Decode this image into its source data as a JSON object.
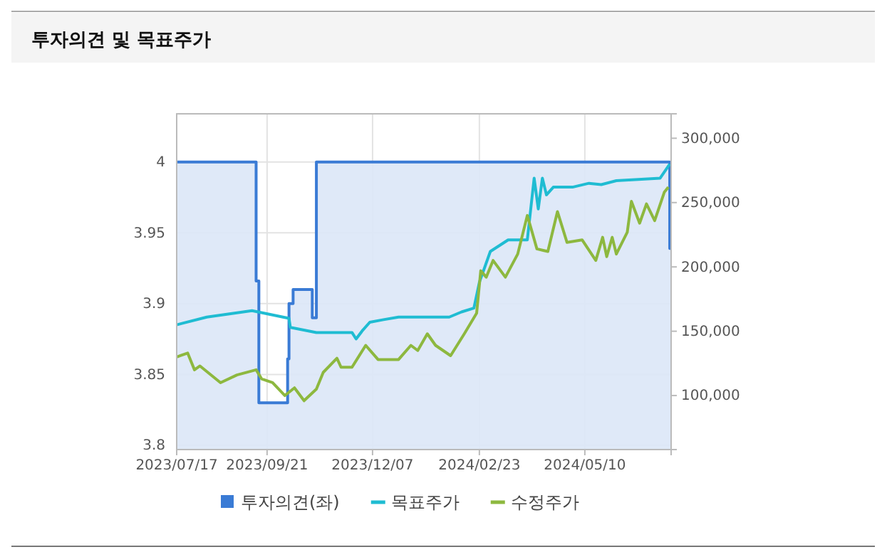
{
  "chart_data": {
    "type": "line",
    "title": "투자의견 및 목표주가",
    "xlim": [
      "2023-07-17",
      "2024-07-12"
    ],
    "xticks": [
      {
        "value": "2023-07-17",
        "label": "2023/07/17"
      },
      {
        "value": "2023-09-21",
        "label": "2023/09/21"
      },
      {
        "value": "2023-12-07",
        "label": "2023/12/07"
      },
      {
        "value": "2024-02-23",
        "label": "2024/02/23"
      },
      {
        "value": "2024-05-10",
        "label": "2024/05/10"
      }
    ],
    "ylim": [
      3.797,
      4.034
    ],
    "yticks": [
      3.8,
      3.85,
      3.9,
      3.95,
      4
    ],
    "y2lim": [
      58000,
      319000
    ],
    "y2ticks": [
      {
        "value": 100000,
        "label": "100,000"
      },
      {
        "value": 150000,
        "label": "150,000"
      },
      {
        "value": 200000,
        "label": "200,000"
      },
      {
        "value": 250000,
        "label": "250,000"
      },
      {
        "value": 300000,
        "label": "300,000"
      }
    ],
    "grid": true,
    "legend": "bottom",
    "marker": "none",
    "line_style": "solid",
    "series": [
      {
        "name": "투자의견(좌)",
        "type": "area",
        "axis": "y",
        "color": "#3a7bd5",
        "x": [
          "2023-07-17",
          "2023-09-13",
          "2023-09-13",
          "2023-09-15",
          "2023-09-15",
          "2023-10-06",
          "2023-10-06",
          "2023-10-07",
          "2023-10-07",
          "2023-10-10",
          "2023-10-10",
          "2023-10-24",
          "2023-10-24",
          "2023-10-27",
          "2023-10-27",
          "2024-07-11",
          "2024-07-11",
          "2024-07-12"
        ],
        "values": [
          4,
          4,
          3.916,
          3.916,
          3.83,
          3.83,
          3.861,
          3.861,
          3.9,
          3.9,
          3.91,
          3.91,
          3.89,
          3.89,
          4,
          4,
          3.939,
          3.939
        ]
      },
      {
        "name": "목표주가",
        "axis": "y2",
        "color": "#1fbcd2",
        "x": [
          "2023-07-17",
          "2023-08-08",
          "2023-09-10",
          "2023-10-07",
          "2023-10-08",
          "2023-10-27",
          "2023-11-22",
          "2023-11-25",
          "2023-11-30",
          "2023-12-05",
          "2023-12-15",
          "2023-12-26",
          "2024-02-01",
          "2024-02-10",
          "2024-02-19",
          "2024-02-23",
          "2024-03-02",
          "2024-03-15",
          "2024-03-29",
          "2024-04-03",
          "2024-04-06",
          "2024-04-09",
          "2024-04-12",
          "2024-04-17",
          "2024-05-01",
          "2024-05-13",
          "2024-05-22",
          "2024-06-02",
          "2024-07-04",
          "2024-07-11"
        ],
        "values": [
          155000,
          161000,
          166000,
          160000,
          153000,
          149000,
          149000,
          144000,
          151000,
          157000,
          159000,
          161000,
          161000,
          165000,
          168000,
          188000,
          212000,
          221000,
          221000,
          269000,
          245000,
          269000,
          256000,
          262000,
          262000,
          265000,
          264000,
          267000,
          269000,
          280000
        ]
      },
      {
        "name": "수정주가",
        "axis": "y2",
        "color": "#8db83f",
        "x": [
          "2023-07-17",
          "2023-07-25",
          "2023-07-30",
          "2023-08-03",
          "2023-08-18",
          "2023-08-30",
          "2023-09-13",
          "2023-09-17",
          "2023-09-25",
          "2023-10-04",
          "2023-10-11",
          "2023-10-18",
          "2023-10-27",
          "2023-11-01",
          "2023-11-11",
          "2023-11-14",
          "2023-11-22",
          "2023-12-02",
          "2023-12-11",
          "2023-12-26",
          "2024-01-04",
          "2024-01-09",
          "2024-01-16",
          "2024-01-22",
          "2024-02-02",
          "2024-02-12",
          "2024-02-21",
          "2024-02-24",
          "2024-02-28",
          "2024-03-04",
          "2024-03-13",
          "2024-03-22",
          "2024-03-29",
          "2024-04-01",
          "2024-04-05",
          "2024-04-13",
          "2024-04-20",
          "2024-04-27",
          "2024-05-08",
          "2024-05-18",
          "2024-05-23",
          "2024-05-26",
          "2024-05-30",
          "2024-06-02",
          "2024-06-10",
          "2024-06-13",
          "2024-06-19",
          "2024-06-24",
          "2024-06-30",
          "2024-07-07",
          "2024-07-10"
        ],
        "values": [
          130000,
          133000,
          120000,
          123000,
          110000,
          116000,
          120000,
          113000,
          110000,
          100000,
          106000,
          96000,
          105000,
          118000,
          129000,
          122000,
          122000,
          139000,
          128000,
          128000,
          139000,
          135000,
          148000,
          139000,
          131000,
          148000,
          164000,
          197000,
          192000,
          205000,
          192000,
          210000,
          240000,
          229000,
          214000,
          212000,
          243000,
          219000,
          221000,
          205000,
          223000,
          208000,
          223000,
          210000,
          227000,
          251000,
          234000,
          249000,
          236000,
          258000,
          262000
        ]
      }
    ]
  }
}
